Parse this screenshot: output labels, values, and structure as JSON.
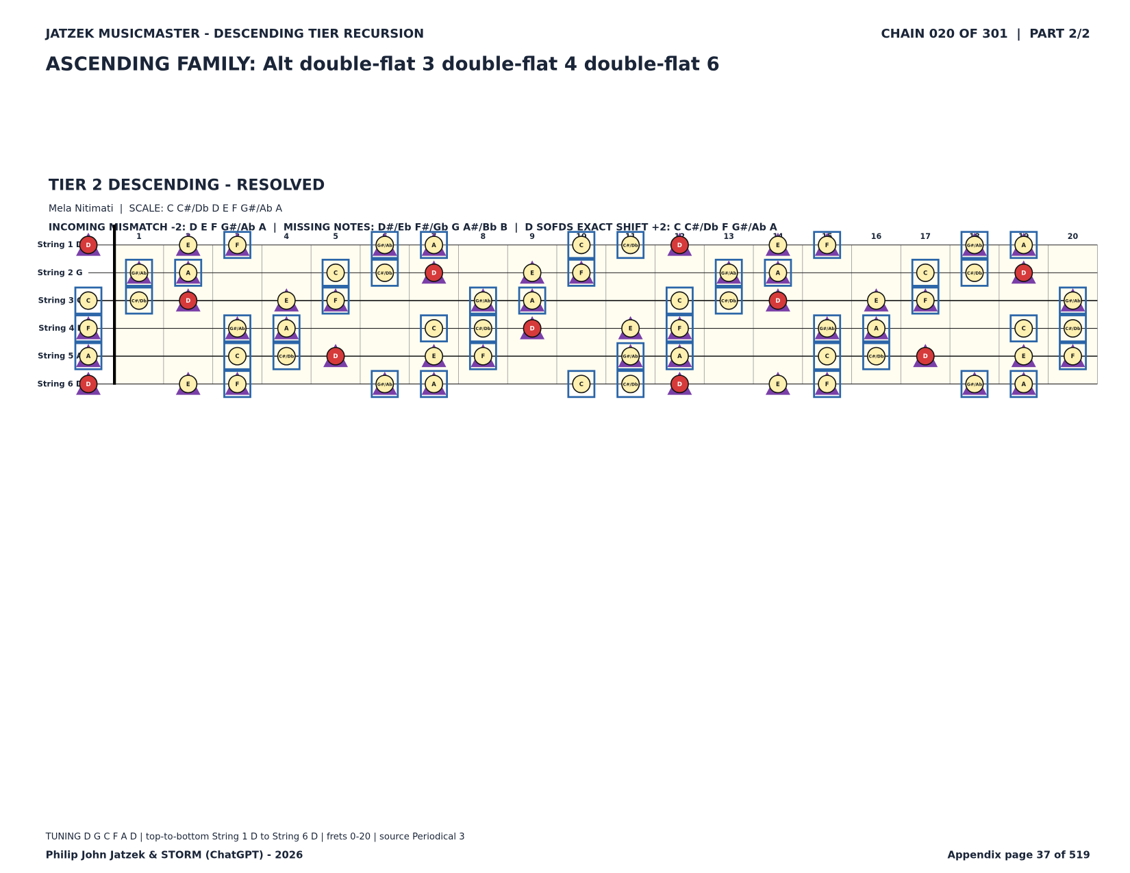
{
  "header": {
    "brand": "JATZEK MUSICMASTER - DESCENDING TIER RECURSION",
    "chain": "CHAIN 020 OF 301  |  PART 2/2",
    "title": "ASCENDING FAMILY: Alt double-flat 3 double-flat 4 double-flat 6"
  },
  "section": {
    "title": "TIER 2 DESCENDING - RESOLVED",
    "scale_line": "Mela Nitimati  |  SCALE: C C#/Db D E F G#/Ab A",
    "mismatch": {
      "incoming_label": "INCOMING MISMATCH -2:",
      "incoming_notes": [
        "D",
        "E",
        "F",
        "G#/Ab",
        "A"
      ],
      "separator": "|",
      "missing_label": "MISSING NOTES:",
      "missing_notes": [
        "D#/Eb",
        "F#/Gb",
        "G",
        "A#/Bb",
        "B"
      ],
      "root": "D",
      "shift_label": "SOFDS EXACT SHIFT +2:",
      "shift_notes": [
        "C",
        "C#/Db",
        "F",
        "G#/Ab",
        "A"
      ]
    }
  },
  "fretboard": {
    "frets": [
      1,
      2,
      3,
      4,
      5,
      6,
      7,
      8,
      9,
      10,
      11,
      12,
      13,
      14,
      15,
      16,
      17,
      18,
      19,
      20
    ],
    "strings": [
      {
        "label": "String 1 D",
        "notes": [
          {
            "fret": 0,
            "note": "D"
          },
          {
            "fret": 2,
            "note": "E"
          },
          {
            "fret": 3,
            "note": "F"
          },
          {
            "fret": 6,
            "note": "G#/Ab"
          },
          {
            "fret": 7,
            "note": "A"
          },
          {
            "fret": 10,
            "note": "C"
          },
          {
            "fret": 11,
            "note": "C#/Db"
          },
          {
            "fret": 12,
            "note": "D"
          },
          {
            "fret": 14,
            "note": "E"
          },
          {
            "fret": 15,
            "note": "F"
          },
          {
            "fret": 18,
            "note": "G#/Ab"
          },
          {
            "fret": 19,
            "note": "A"
          }
        ]
      },
      {
        "label": "String 2 G",
        "notes": [
          {
            "fret": 1,
            "note": "G#/Ab"
          },
          {
            "fret": 2,
            "note": "A"
          },
          {
            "fret": 5,
            "note": "C"
          },
          {
            "fret": 6,
            "note": "C#/Db"
          },
          {
            "fret": 7,
            "note": "D"
          },
          {
            "fret": 9,
            "note": "E"
          },
          {
            "fret": 10,
            "note": "F"
          },
          {
            "fret": 13,
            "note": "G#/Ab"
          },
          {
            "fret": 14,
            "note": "A"
          },
          {
            "fret": 17,
            "note": "C"
          },
          {
            "fret": 18,
            "note": "C#/Db"
          },
          {
            "fret": 19,
            "note": "D"
          }
        ]
      },
      {
        "label": "String 3 C",
        "notes": [
          {
            "fret": 0,
            "note": "C"
          },
          {
            "fret": 1,
            "note": "C#/Db"
          },
          {
            "fret": 2,
            "note": "D"
          },
          {
            "fret": 4,
            "note": "E"
          },
          {
            "fret": 5,
            "note": "F"
          },
          {
            "fret": 8,
            "note": "G#/Ab"
          },
          {
            "fret": 9,
            "note": "A"
          },
          {
            "fret": 12,
            "note": "C"
          },
          {
            "fret": 13,
            "note": "C#/Db"
          },
          {
            "fret": 14,
            "note": "D"
          },
          {
            "fret": 16,
            "note": "E"
          },
          {
            "fret": 17,
            "note": "F"
          },
          {
            "fret": 20,
            "note": "G#/Ab"
          }
        ]
      },
      {
        "label": "String 4 F",
        "notes": [
          {
            "fret": 0,
            "note": "F"
          },
          {
            "fret": 3,
            "note": "G#/Ab"
          },
          {
            "fret": 4,
            "note": "A"
          },
          {
            "fret": 7,
            "note": "C"
          },
          {
            "fret": 8,
            "note": "C#/Db"
          },
          {
            "fret": 9,
            "note": "D"
          },
          {
            "fret": 11,
            "note": "E"
          },
          {
            "fret": 12,
            "note": "F"
          },
          {
            "fret": 15,
            "note": "G#/Ab"
          },
          {
            "fret": 16,
            "note": "A"
          },
          {
            "fret": 19,
            "note": "C"
          },
          {
            "fret": 20,
            "note": "C#/Db"
          }
        ]
      },
      {
        "label": "String 5 A",
        "notes": [
          {
            "fret": 0,
            "note": "A"
          },
          {
            "fret": 3,
            "note": "C"
          },
          {
            "fret": 4,
            "note": "C#/Db"
          },
          {
            "fret": 5,
            "note": "D"
          },
          {
            "fret": 7,
            "note": "E"
          },
          {
            "fret": 8,
            "note": "F"
          },
          {
            "fret": 11,
            "note": "G#/Ab"
          },
          {
            "fret": 12,
            "note": "A"
          },
          {
            "fret": 15,
            "note": "C"
          },
          {
            "fret": 16,
            "note": "C#/Db"
          },
          {
            "fret": 17,
            "note": "D"
          },
          {
            "fret": 19,
            "note": "E"
          },
          {
            "fret": 20,
            "note": "F"
          }
        ]
      },
      {
        "label": "String 6 D",
        "notes": [
          {
            "fret": 0,
            "note": "D"
          },
          {
            "fret": 2,
            "note": "E"
          },
          {
            "fret": 3,
            "note": "F"
          },
          {
            "fret": 6,
            "note": "G#/Ab"
          },
          {
            "fret": 7,
            "note": "A"
          },
          {
            "fret": 10,
            "note": "C"
          },
          {
            "fret": 11,
            "note": "C#/Db"
          },
          {
            "fret": 12,
            "note": "D"
          },
          {
            "fret": 14,
            "note": "E"
          },
          {
            "fret": 15,
            "note": "F"
          },
          {
            "fret": 18,
            "note": "G#/Ab"
          },
          {
            "fret": 19,
            "note": "A"
          }
        ]
      }
    ]
  },
  "footer": {
    "tuning": "TUNING D G C F A D | top-to-bottom String 1 D to String 6 D | frets 0-20 | source Periodical 3",
    "author": "Philip John Jatzek & STORM (ChatGPT) - 2026",
    "page": "Appendix page 37 of 519"
  }
}
